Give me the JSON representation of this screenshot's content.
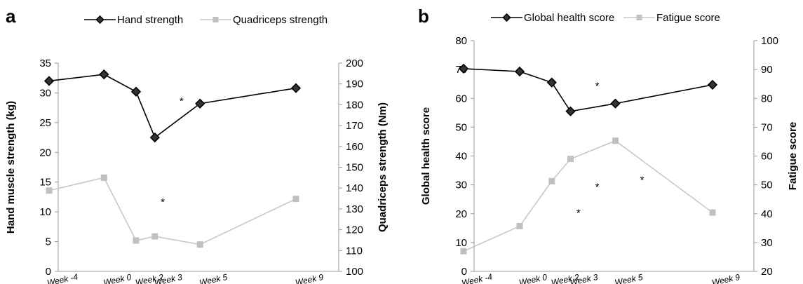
{
  "chart_data": [
    {
      "type": "line",
      "panel": "a",
      "categories": [
        "Week -4",
        "Week 0",
        "Week 2",
        "Week 3",
        "Week 5",
        "Week 9"
      ],
      "x": [
        -4,
        0,
        2,
        3,
        5,
        9
      ],
      "ylabel": "Hand muscle strength (kg)",
      "ylabel_right": "Quadriceps strength (Nm)",
      "ylim": [
        0,
        35
      ],
      "ylim_right": [
        100,
        200
      ],
      "yticks": [
        0,
        5,
        10,
        15,
        20,
        25,
        30,
        35
      ],
      "yticks_right": [
        100,
        110,
        120,
        130,
        140,
        150,
        160,
        170,
        180,
        190,
        200
      ],
      "legend_position": "top",
      "series": [
        {
          "name": "Hand strength",
          "axis": "left",
          "marker": "diamond",
          "color": "#000000",
          "values": [
            32.0,
            33.1,
            30.2,
            22.5,
            28.2,
            30.8
          ]
        },
        {
          "name": "Quadriceps strength",
          "axis": "right",
          "marker": "square",
          "color": "#bdbdbd",
          "values": [
            138.8,
            145.0,
            114.8,
            116.8,
            112.9,
            134.8
          ]
        }
      ],
      "annotations": [
        {
          "text": "*",
          "x": 3,
          "y": 29.0,
          "axis": "left"
        },
        {
          "text": "*",
          "x": 2,
          "y": 12.0,
          "axis": "left"
        }
      ]
    },
    {
      "type": "line",
      "panel": "b",
      "categories": [
        "Week -4",
        "Week 0",
        "Week 2",
        "Week 3",
        "Week 5",
        "Week 9"
      ],
      "x": [
        -4,
        0,
        2,
        3,
        5,
        9
      ],
      "ylabel": "Global health score",
      "ylabel_right": "Fatigue score",
      "ylim": [
        0,
        80
      ],
      "ylim_right": [
        20,
        100
      ],
      "yticks": [
        0,
        10,
        20,
        30,
        40,
        50,
        60,
        70,
        80
      ],
      "yticks_right": [
        20,
        30,
        40,
        50,
        60,
        70,
        80,
        90,
        100
      ],
      "legend_position": "top",
      "series": [
        {
          "name": "Global health score",
          "axis": "left",
          "marker": "diamond",
          "color": "#000000",
          "values": [
            70.3,
            69.3,
            65.5,
            55.5,
            58.2,
            64.7
          ]
        },
        {
          "name": "Fatigue score",
          "axis": "right",
          "marker": "square",
          "color": "#bdbdbd",
          "values": [
            27.0,
            35.7,
            51.3,
            59.0,
            65.3,
            40.4
          ]
        }
      ],
      "annotations": [
        {
          "text": "*",
          "x": 3,
          "y": 65.0,
          "axis": "left"
        },
        {
          "text": "*",
          "x": 2,
          "y": 21.0,
          "axis": "left"
        },
        {
          "text": "*",
          "x": 3,
          "y": 30.0,
          "axis": "left"
        },
        {
          "text": "*",
          "x": 5,
          "y": 32.5,
          "axis": "left"
        }
      ]
    }
  ]
}
